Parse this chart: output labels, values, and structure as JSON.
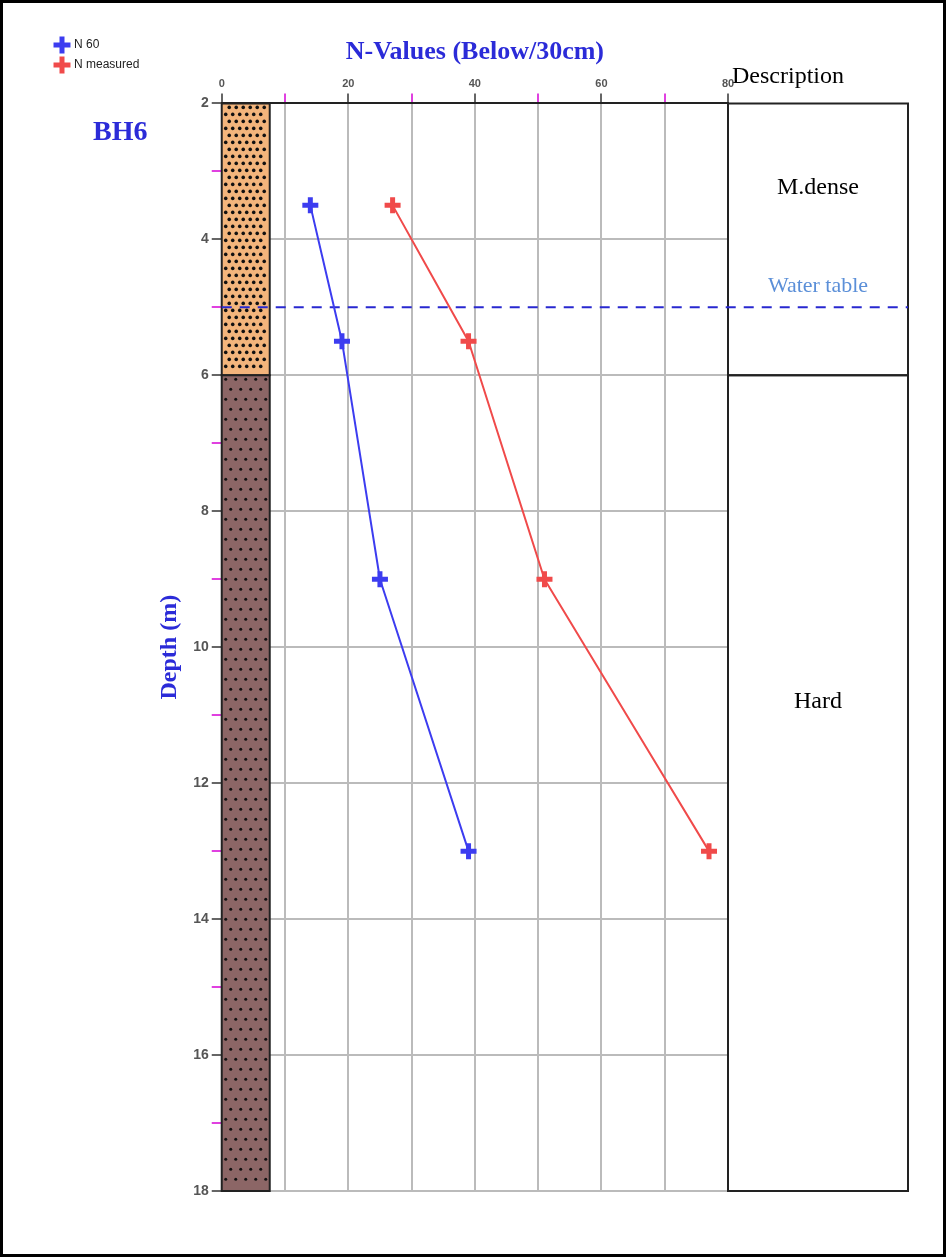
{
  "chart_data": {
    "type": "line",
    "orientation": "horizontal",
    "title": "BH6",
    "xlabel": "N-Values (Below/30cm)",
    "ylabel": "Depth (m)",
    "x": [
      3.5,
      5.5,
      9,
      13
    ],
    "series": [
      {
        "name": "N 60",
        "color": "#3c3cf0",
        "values": [
          14,
          19,
          25,
          39
        ]
      },
      {
        "name": "N measured",
        "color": "#f04a4a",
        "values": [
          27,
          39,
          51,
          77
        ]
      }
    ],
    "xlim": [
      0,
      80
    ],
    "xticks": [
      0,
      {
        "value": 10,
        "label": null
      },
      20,
      {
        "value": 30,
        "label": null
      },
      40,
      {
        "value": 50,
        "label": null
      },
      60,
      {
        "value": 70,
        "label": null
      },
      80
    ],
    "ylim": [
      18,
      2
    ],
    "yticks": [
      2,
      {
        "value": 3,
        "label": null
      },
      4,
      {
        "value": 5,
        "label": null
      },
      6,
      {
        "value": 7,
        "label": null
      },
      8,
      {
        "value": 9,
        "label": null
      },
      10,
      {
        "value": 11,
        "label": null
      },
      12,
      {
        "value": 13,
        "label": null
      },
      14,
      {
        "value": 15,
        "label": null
      },
      16,
      {
        "value": 17,
        "label": null
      },
      18
    ],
    "ref_lines": [
      {
        "axis": "y",
        "value": 5,
        "label": "Water table",
        "color": "#2828d0",
        "line_style": "dashed"
      }
    ],
    "bands": [
      {
        "axis": "y",
        "from": 2,
        "to": 6,
        "color": "#f3b57c"
      },
      {
        "axis": "y",
        "from": 6,
        "to": 18,
        "color": "#8c6666"
      }
    ],
    "annotations": [
      "Description",
      "M.dense",
      "Hard"
    ],
    "grid": true,
    "legend": "top left",
    "marker": "cross",
    "line_style": "solid"
  }
}
